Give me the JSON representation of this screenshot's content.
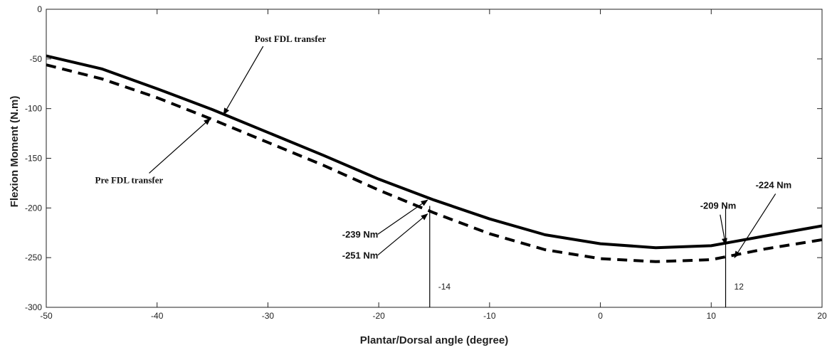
{
  "chart_data": {
    "type": "line",
    "xlabel": "Plantar/Dorsal angle (degree)",
    "ylabel": "Flexion Moment (N.m)",
    "xlim": [
      -50,
      20
    ],
    "ylim": [
      -300,
      0
    ],
    "xticks": [
      "-50",
      "-40",
      "-30",
      "-20",
      "-10",
      "0",
      "10",
      "20"
    ],
    "yticks": [
      "0",
      "-50",
      "-100",
      "-150",
      "-200",
      "-250",
      "-300"
    ],
    "grid": false,
    "series": [
      {
        "name": "Post FDL transfer",
        "style": "solid",
        "color": "#000000",
        "x": [
          -50,
          -45,
          -40,
          -35,
          -30,
          -25,
          -20,
          -15,
          -10,
          -5,
          0,
          5,
          10,
          15,
          20
        ],
        "y": [
          -47,
          -60,
          -80,
          -101,
          -124,
          -147,
          -171,
          -192,
          -211,
          -227,
          -236,
          -240,
          -238,
          -228,
          -218
        ]
      },
      {
        "name": "Pre FDL transfer",
        "style": "dashed",
        "color": "#000000",
        "x": [
          -50,
          -45,
          -40,
          -35,
          -30,
          -25,
          -20,
          -15,
          -10,
          -5,
          0,
          5,
          10,
          15,
          20
        ],
        "y": [
          -56,
          -70,
          -89,
          -111,
          -134,
          -157,
          -182,
          -205,
          -226,
          -242,
          -251,
          -254,
          -252,
          -241,
          -232
        ]
      }
    ],
    "markers": [
      {
        "x": -15.4,
        "label": "-14"
      },
      {
        "x": 11.3,
        "label": "12"
      }
    ],
    "annotations": [
      {
        "text": "Post FDL transfer",
        "font": "serif",
        "tx": -31.2,
        "ty": -33,
        "ax": -34,
        "ay": -106
      },
      {
        "text": "Pre FDL transfer",
        "font": "serif",
        "tx": -45.6,
        "ty": -175,
        "ax": -35.2,
        "ay": -110
      },
      {
        "text": "-239 Nm",
        "font": "sans",
        "tx": -23.3,
        "ty": -230,
        "ax": -15.6,
        "ay": -192
      },
      {
        "text": "-251 Nm",
        "font": "sans",
        "tx": -23.3,
        "ty": -251,
        "ax": -15.6,
        "ay": -206
      },
      {
        "text": "-209 Nm",
        "font": "sans",
        "tx": 9,
        "ty": -201,
        "ax": 11.3,
        "ay": -237
      },
      {
        "text": "-224 Nm",
        "font": "sans",
        "tx": 14,
        "ty": -180,
        "ax": 12.1,
        "ay": -250
      }
    ]
  }
}
